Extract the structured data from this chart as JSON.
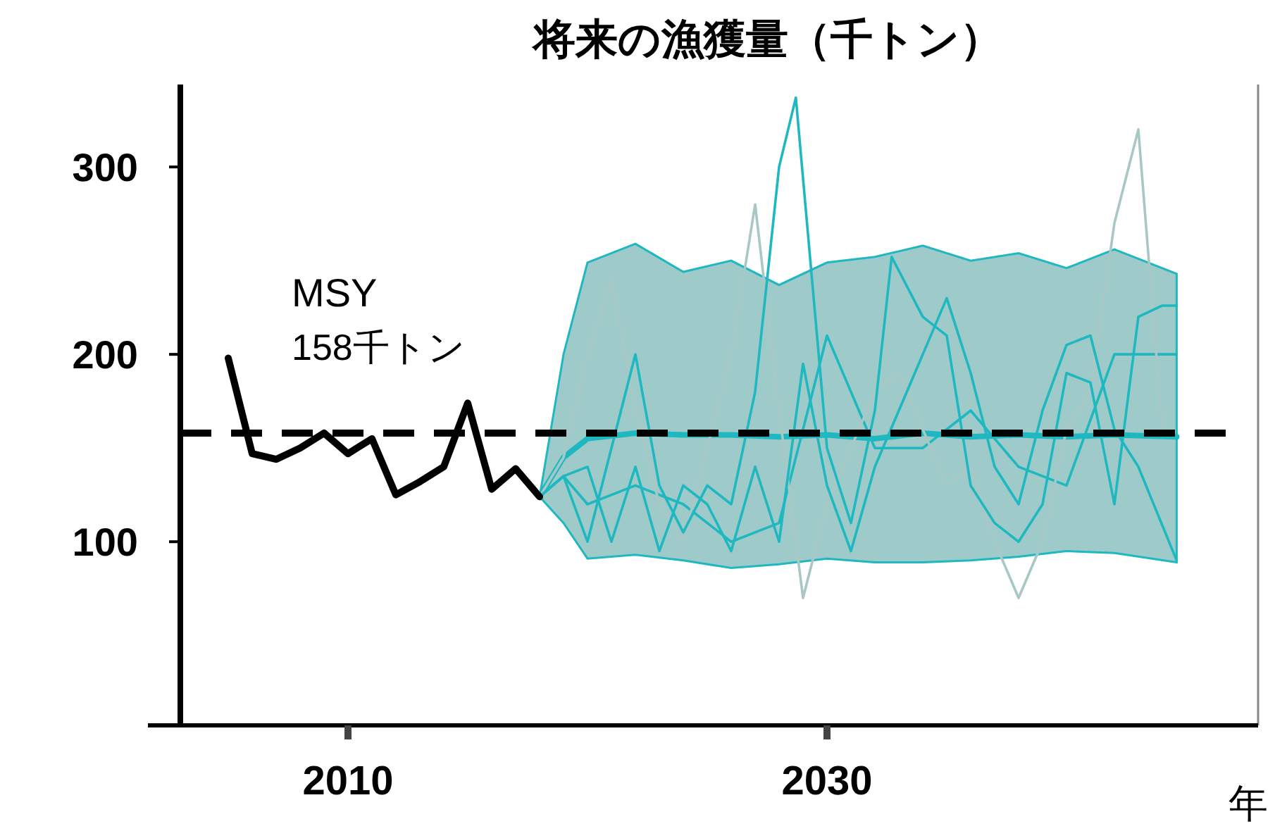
{
  "chart_data": {
    "type": "line",
    "title": "将来の漁獲量（千トン）",
    "xlabel": "年",
    "xlim": [
      2003,
      2048
    ],
    "ylim": [
      2,
      344
    ],
    "xticks": [
      2010,
      2030
    ],
    "yticks": [
      100,
      200,
      300
    ],
    "grid": false,
    "ref_lines": [
      {
        "axis": "y",
        "value": 158,
        "label": "MSY 158千トン",
        "color": "#000000",
        "line_style": "dashed"
      }
    ],
    "series": [
      {
        "color": "#1fb8c0",
        "line_style": "solid",
        "x": [
          2018,
          2019,
          2020,
          2022,
          2024,
          2026,
          2028,
          2030,
          2032,
          2034,
          2036,
          2038,
          2040,
          2042,
          2044.6
        ],
        "values": [
          124,
          135,
          120,
          130,
          120,
          100,
          110,
          210,
          150,
          150,
          170,
          140,
          130,
          200,
          200
        ]
      },
      {
        "color": "#a8c8c6",
        "line_style": "solid",
        "x": [
          2018,
          2019,
          2020,
          2021,
          2022,
          2023,
          2024,
          2025,
          2026,
          2027,
          2028,
          2029,
          2030,
          2031,
          2032,
          2033,
          2034,
          2035,
          2036,
          2037,
          2038,
          2039,
          2040,
          2041,
          2042,
          2043,
          2044
        ],
        "values": [
          124,
          145,
          200,
          240,
          170,
          120,
          100,
          150,
          200,
          280,
          170,
          70,
          120,
          150,
          180,
          190,
          160,
          130,
          140,
          100,
          70,
          100,
          160,
          180,
          270,
          320,
          160
        ]
      },
      {
        "color": "#1fb8c0",
        "line_style": "solid",
        "x": [
          2018,
          2019,
          2020,
          2021,
          2022,
          2023,
          2024,
          2025,
          2026,
          2027,
          2028,
          2029,
          2030,
          2031,
          2032,
          2033,
          2034,
          2035,
          2036,
          2037,
          2038,
          2039,
          2040,
          2041,
          2042,
          2043,
          2044.6
        ],
        "values": [
          124,
          135,
          140,
          100,
          140,
          95,
          130,
          120,
          95,
          140,
          100,
          195,
          130,
          95,
          140,
          170,
          200,
          230,
          190,
          140,
          120,
          170,
          205,
          210,
          160,
          140,
          90
        ]
      },
      {
        "color": "#1fb8c0",
        "line_style": "solid",
        "x": [
          2018,
          2019,
          2020,
          2021,
          2022,
          2023,
          2024,
          2025,
          2026,
          2027,
          2028,
          2028.7,
          2030,
          2031,
          2032,
          2032.7,
          2034,
          2035,
          2036,
          2037,
          2038,
          2039,
          2040,
          2041,
          2042,
          2043,
          2044,
          2044.6
        ],
        "values": [
          124,
          135,
          100,
          150,
          200,
          130,
          105,
          130,
          120,
          180,
          300,
          337,
          150,
          110,
          170,
          252,
          220,
          210,
          130,
          110,
          100,
          120,
          190,
          185,
          120,
          220,
          226,
          226
        ]
      },
      {
        "color": "#1fb8c0",
        "line_style": "solid",
        "x": [
          2018,
          2019,
          2020,
          2022,
          2024,
          2026,
          2028,
          2030,
          2032,
          2034,
          2036,
          2038,
          2040,
          2042,
          2044.6
        ],
        "values": [
          124,
          145,
          155,
          158,
          157,
          157,
          156,
          157,
          155,
          158,
          156,
          157,
          156,
          157,
          156
        ],
        "lower": [
          124,
          110,
          91,
          93,
          90,
          86,
          88,
          91,
          89,
          89,
          90,
          92,
          95,
          94,
          89
        ],
        "upper": [
          124,
          200,
          249,
          259,
          244,
          250,
          237,
          249,
          252,
          258,
          250,
          254,
          246,
          256,
          243
        ]
      },
      {
        "color": "#000000",
        "line_style": "solid",
        "x": [
          2005,
          2006,
          2007,
          2008,
          2009,
          2010,
          2011,
          2012,
          2013,
          2014,
          2015,
          2016,
          2017,
          2018
        ],
        "values": [
          198,
          147,
          144,
          150,
          158,
          147,
          155,
          125,
          132,
          140,
          174,
          128,
          139,
          124
        ]
      }
    ]
  }
}
